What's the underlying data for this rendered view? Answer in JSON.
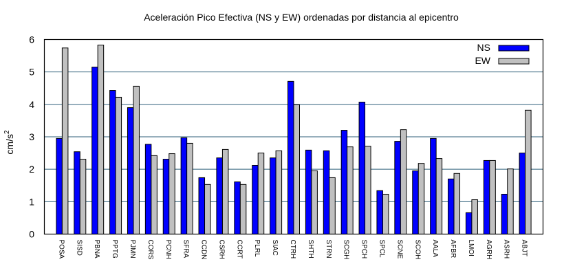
{
  "chart_data": {
    "type": "bar",
    "title": "Aceleración Pico Efectiva (NS y EW) ordenadas por distancia al epicentro",
    "xlabel": "",
    "ylabel": "cm/s",
    "ylabel_superscript": "2",
    "ylim": [
      0,
      6
    ],
    "yticks": [
      "0",
      "1",
      "2",
      "3",
      "4",
      "5",
      "6"
    ],
    "grid": true,
    "legend_position": "top-right",
    "categories": [
      "POSA",
      "SISD",
      "PBNA",
      "PPTG",
      "PJMN",
      "CORS",
      "PCNH",
      "SFRA",
      "CCDN",
      "CSRH",
      "CCRT",
      "PLRL",
      "SIAC",
      "CTRH",
      "SHTH",
      "STRN",
      "SCGH",
      "SPCH",
      "SPCL",
      "SCNE",
      "SCOH",
      "AALA",
      "AFBR",
      "LMOI",
      "AGRH",
      "ASRH",
      "ABJT"
    ],
    "series": [
      {
        "name": "NS",
        "color": "#0000ff",
        "values": [
          2.95,
          2.54,
          5.15,
          4.43,
          3.9,
          2.77,
          2.31,
          2.97,
          1.74,
          2.35,
          1.61,
          2.12,
          2.35,
          4.71,
          2.59,
          2.57,
          3.2,
          4.07,
          1.34,
          2.86,
          1.95,
          2.95,
          1.7,
          0.66,
          2.27,
          1.23,
          2.5
        ]
      },
      {
        "name": "EW",
        "color": "#c0c0c0",
        "values": [
          5.74,
          2.31,
          5.83,
          4.22,
          4.56,
          2.42,
          2.48,
          2.8,
          1.53,
          2.61,
          1.53,
          2.5,
          2.57,
          3.99,
          1.95,
          1.74,
          2.69,
          2.71,
          1.23,
          3.22,
          2.18,
          2.33,
          1.87,
          1.06,
          2.27,
          2.01,
          3.82
        ]
      }
    ],
    "gridline_color": "#2f5f7a"
  }
}
